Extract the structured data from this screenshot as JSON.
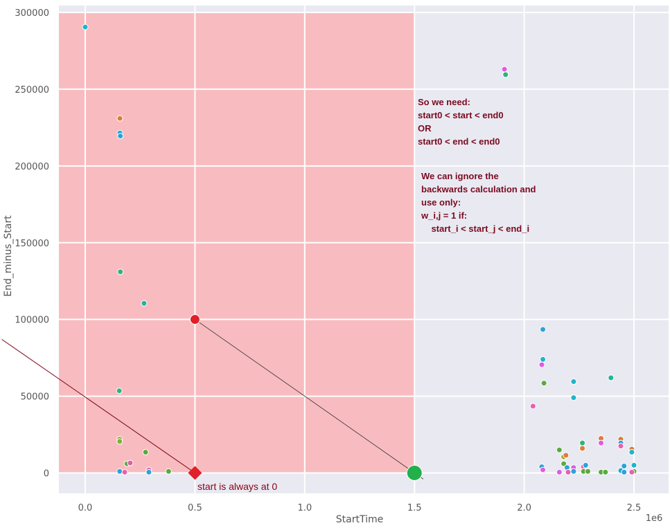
{
  "chart_data": {
    "type": "scatter",
    "xlabel": "StartTime",
    "ylabel": "End_minus_Start",
    "x_offset_text": "1e6",
    "xlim": [
      -0.12,
      2.65
    ],
    "ylim": [
      -14000,
      304000
    ],
    "x_ticks": [
      0.0,
      0.5,
      1.0,
      1.5,
      2.0,
      2.5
    ],
    "x_tick_labels": [
      "0.0",
      "0.5",
      "1.0",
      "1.5",
      "2.0",
      "2.5"
    ],
    "y_ticks": [
      0,
      50000,
      100000,
      150000,
      200000,
      250000,
      300000
    ],
    "y_tick_labels": [
      "0",
      "50000",
      "100000",
      "150000",
      "200000",
      "250000",
      "300000"
    ],
    "grid": true,
    "background_color": "#e9e9f1",
    "points": [
      {
        "x": 0.0,
        "y": 290500,
        "color": "#1fb5c9"
      },
      {
        "x": 0.158,
        "y": 231000,
        "color": "#e07b39"
      },
      {
        "x": 0.158,
        "y": 221500,
        "color": "#2aa3d8"
      },
      {
        "x": 0.16,
        "y": 219500,
        "color": "#2aa3d8"
      },
      {
        "x": 0.16,
        "y": 131000,
        "color": "#2db37e"
      },
      {
        "x": 0.268,
        "y": 110500,
        "color": "#1fb59a"
      },
      {
        "x": 0.155,
        "y": 53500,
        "color": "#2db37e"
      },
      {
        "x": 0.157,
        "y": 22000,
        "color": "#a2a32c"
      },
      {
        "x": 0.157,
        "y": 20500,
        "color": "#79b33a"
      },
      {
        "x": 0.275,
        "y": 13500,
        "color": "#5aaa3e"
      },
      {
        "x": 0.19,
        "y": 6000,
        "color": "#5aaa3e"
      },
      {
        "x": 0.205,
        "y": 6500,
        "color": "#e15f9f"
      },
      {
        "x": 0.157,
        "y": 1000,
        "color": "#2aa3d8"
      },
      {
        "x": 0.18,
        "y": 500,
        "color": "#e95fb0"
      },
      {
        "x": 0.29,
        "y": 2000,
        "color": "#e95fb0"
      },
      {
        "x": 0.29,
        "y": 500,
        "color": "#2aa3d8"
      },
      {
        "x": 0.38,
        "y": 1000,
        "color": "#5aaa3e"
      },
      {
        "x": 1.91,
        "y": 263000,
        "color": "#e05be6"
      },
      {
        "x": 1.915,
        "y": 259500,
        "color": "#2db37e"
      },
      {
        "x": 2.085,
        "y": 93500,
        "color": "#2aa3d8"
      },
      {
        "x": 2.085,
        "y": 74000,
        "color": "#1fb5c9"
      },
      {
        "x": 2.08,
        "y": 70500,
        "color": "#e05be6"
      },
      {
        "x": 2.09,
        "y": 58500,
        "color": "#5aaa3e"
      },
      {
        "x": 2.04,
        "y": 43500,
        "color": "#e95fb0"
      },
      {
        "x": 2.225,
        "y": 59500,
        "color": "#1fb5c9"
      },
      {
        "x": 2.225,
        "y": 49000,
        "color": "#1fb5c9"
      },
      {
        "x": 2.395,
        "y": 62000,
        "color": "#1fb59a"
      },
      {
        "x": 2.16,
        "y": 15000,
        "color": "#5aaa3e"
      },
      {
        "x": 2.18,
        "y": 10500,
        "color": "#a2a32c"
      },
      {
        "x": 2.19,
        "y": 11500,
        "color": "#e07b39"
      },
      {
        "x": 2.265,
        "y": 19500,
        "color": "#2db37e"
      },
      {
        "x": 2.265,
        "y": 16000,
        "color": "#e07b39"
      },
      {
        "x": 2.35,
        "y": 22500,
        "color": "#e07b39"
      },
      {
        "x": 2.35,
        "y": 19500,
        "color": "#e05be6"
      },
      {
        "x": 2.44,
        "y": 22000,
        "color": "#e07b39"
      },
      {
        "x": 2.44,
        "y": 19500,
        "color": "#2aa3d8"
      },
      {
        "x": 2.44,
        "y": 17500,
        "color": "#e95fb0"
      },
      {
        "x": 2.49,
        "y": 15500,
        "color": "#e07b39"
      },
      {
        "x": 2.49,
        "y": 13500,
        "color": "#1fb5c9"
      },
      {
        "x": 2.08,
        "y": 4000,
        "color": "#2aa3d8"
      },
      {
        "x": 2.085,
        "y": 2000,
        "color": "#e05be6"
      },
      {
        "x": 2.18,
        "y": 6000,
        "color": "#5aaa3e"
      },
      {
        "x": 2.195,
        "y": 3500,
        "color": "#2aa3d8"
      },
      {
        "x": 2.16,
        "y": 500,
        "color": "#e05be6"
      },
      {
        "x": 2.2,
        "y": 500,
        "color": "#e95fb0"
      },
      {
        "x": 2.225,
        "y": 3500,
        "color": "#e05be6"
      },
      {
        "x": 2.225,
        "y": 1000,
        "color": "#2aa3d8"
      },
      {
        "x": 2.27,
        "y": 4000,
        "color": "#e95fb0"
      },
      {
        "x": 2.28,
        "y": 5000,
        "color": "#2aa3d8"
      },
      {
        "x": 2.27,
        "y": 1000,
        "color": "#5aaa3e"
      },
      {
        "x": 2.29,
        "y": 1000,
        "color": "#5aaa3e"
      },
      {
        "x": 2.35,
        "y": 500,
        "color": "#5aaa3e"
      },
      {
        "x": 2.37,
        "y": 500,
        "color": "#5aaa3e"
      },
      {
        "x": 2.455,
        "y": 4500,
        "color": "#2aa3d8"
      },
      {
        "x": 2.44,
        "y": 1500,
        "color": "#2aa3d8"
      },
      {
        "x": 2.455,
        "y": 500,
        "color": "#2aa3d8"
      },
      {
        "x": 2.5,
        "y": 5000,
        "color": "#1fb5c9"
      },
      {
        "x": 2.5,
        "y": 1000,
        "color": "#5aaa3e"
      },
      {
        "x": 2.49,
        "y": 500,
        "color": "#e95fb0"
      }
    ],
    "annotations": {
      "shaded_region": {
        "x_from": -0.12,
        "x_to": 1.5,
        "y_from": 0,
        "y_to": 300000,
        "color": "#f8bcc0"
      },
      "red_point": {
        "x": 0.5,
        "y": 100000,
        "color": "#e0202a"
      },
      "red_diamond": {
        "x": 0.5,
        "y": 0,
        "color": "#e0202a"
      },
      "green_point": {
        "x": 1.5,
        "y": 0,
        "color": "#22b04a"
      },
      "black_line": {
        "x1": 0.5,
        "y1": 100000,
        "x2": 1.54,
        "y2": -4000,
        "color": "#333333"
      },
      "darkred_line": {
        "x1": -0.38,
        "y1": 87000,
        "x2": 0.5,
        "y2": 0,
        "color": "#7a0010"
      },
      "note1": [
        "So we need:",
        "start0 < start < end0",
        "OR",
        "start0 < end < end0"
      ],
      "note2": [
        "We can ignore the",
        "backwards calculation and",
        "use only:",
        "w_i,j = 1 if:",
        "    start_i < start_j < end_i"
      ],
      "caption": "start is always at 0",
      "note_color": "#7a0a1f"
    }
  }
}
